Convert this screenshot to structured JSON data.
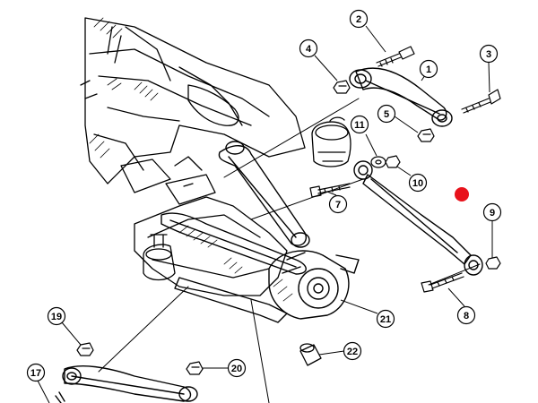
{
  "callouts": {
    "c1": "1",
    "c2": "2",
    "c3": "3",
    "c4": "4",
    "c5": "5",
    "c7": "7",
    "c8": "8",
    "c9": "9",
    "c10": "10",
    "c11": "11",
    "c17": "17",
    "c19": "19",
    "c20": "20",
    "c21": "21",
    "c22": "22"
  },
  "colors": {
    "ink": "#000000",
    "background": "#ffffff",
    "highlight_marker": "#e8121b"
  },
  "marker": {
    "label": "",
    "color_name": "red-dot"
  }
}
